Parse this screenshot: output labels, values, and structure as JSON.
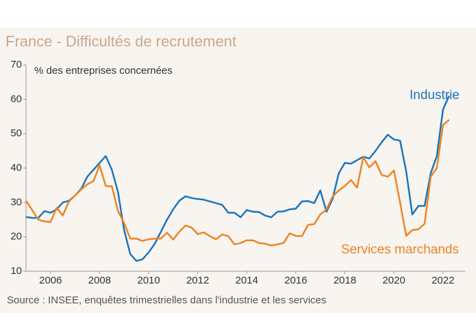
{
  "chart_data": {
    "type": "line",
    "title": "France - Difficultés de recrutement",
    "y_label": "% des entreprises concernées",
    "source": "Source : INSEE, enquêtes trimestrielles dans l'industrie et les services",
    "x": [
      2005,
      2005.25,
      2005.5,
      2005.75,
      2006,
      2006.25,
      2006.5,
      2006.75,
      2007,
      2007.25,
      2007.5,
      2007.75,
      2008,
      2008.25,
      2008.5,
      2008.75,
      2009,
      2009.25,
      2009.5,
      2009.75,
      2010,
      2010.25,
      2010.5,
      2010.75,
      2011,
      2011.25,
      2011.5,
      2011.75,
      2012,
      2012.25,
      2012.5,
      2012.75,
      2013,
      2013.25,
      2013.5,
      2013.75,
      2014,
      2014.25,
      2014.5,
      2014.75,
      2015,
      2015.25,
      2015.5,
      2015.75,
      2016,
      2016.25,
      2016.5,
      2016.75,
      2017,
      2017.25,
      2017.5,
      2017.75,
      2018,
      2018.25,
      2018.5,
      2018.75,
      2019,
      2019.25,
      2019.5,
      2019.75,
      2020,
      2020.25,
      2020.5,
      2020.75,
      2021,
      2021.25,
      2021.5,
      2021.75,
      2022,
      2022.25
    ],
    "series": [
      {
        "name": "Industrie",
        "color": "#1b75bc",
        "values": [
          25.8,
          25.5,
          25.5,
          27.5,
          27,
          28,
          30,
          30.5,
          32,
          34,
          37.5,
          39.5,
          41.5,
          43.5,
          39.5,
          33,
          22,
          15,
          13,
          13.5,
          15.5,
          18,
          21.5,
          25,
          28,
          30.5,
          31.8,
          31.3,
          31,
          30.8,
          30.3,
          29.8,
          29.3,
          27,
          27,
          25.7,
          27.8,
          27.3,
          27.2,
          26.2,
          25.7,
          27.3,
          27.4,
          28,
          28.2,
          30.3,
          30.4,
          29.8,
          33.5,
          27.3,
          31,
          38.5,
          41.5,
          41.3,
          42.3,
          43.3,
          42.8,
          45,
          47.5,
          49.7,
          48.3,
          48,
          39,
          26.5,
          29,
          29,
          38.5,
          43.5,
          57,
          61
        ]
      },
      {
        "name": "Services marchands",
        "color": "#ed8422",
        "values": [
          30.5,
          27.8,
          25,
          24.5,
          24.3,
          28.5,
          26.2,
          30.3,
          32,
          33.8,
          35.3,
          36.2,
          40.8,
          34.8,
          34.7,
          27.5,
          24,
          19.5,
          19.5,
          18.8,
          19.3,
          19.5,
          19.5,
          21.2,
          19.2,
          21.5,
          23.3,
          22.7,
          20.8,
          21.3,
          20.2,
          19.3,
          20.7,
          20.2,
          17.8,
          18.2,
          19,
          19,
          18.2,
          18,
          17.5,
          17.8,
          18.2,
          21,
          20.3,
          20.2,
          23.5,
          23.7,
          26.5,
          28,
          31.7,
          33.5,
          34.8,
          36.5,
          34.3,
          43.2,
          40.2,
          42,
          38,
          37.5,
          39.3,
          30,
          20.3,
          22,
          22.2,
          23.8,
          37.5,
          40,
          52.5,
          54
        ]
      }
    ],
    "xlim": [
      2005,
      2022.9
    ],
    "xticks": [
      2006,
      2008,
      2010,
      2012,
      2014,
      2016,
      2018,
      2020,
      2022
    ],
    "ylim": [
      10,
      70
    ],
    "yticks": [
      10,
      20,
      30,
      40,
      50,
      60,
      70
    ]
  }
}
